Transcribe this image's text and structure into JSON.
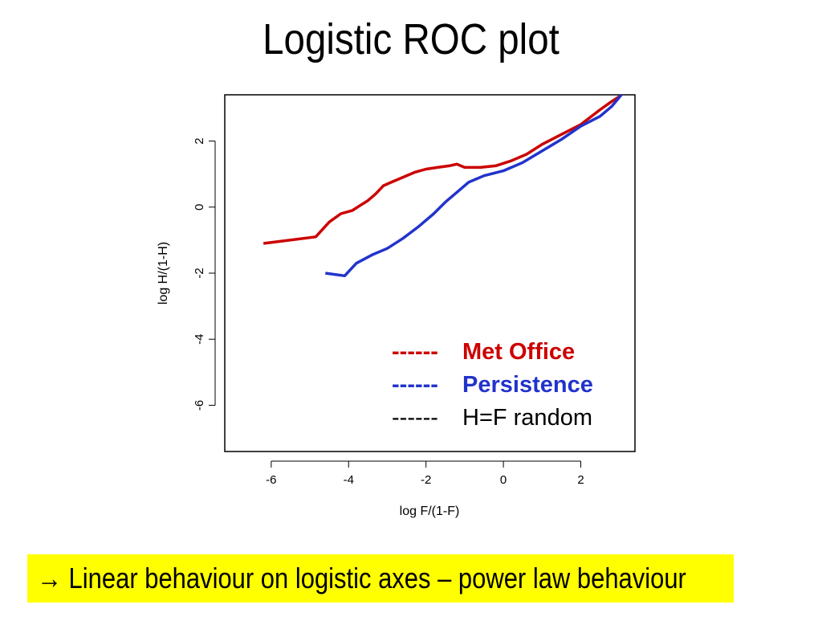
{
  "slide": {
    "title": "Logistic ROC plot",
    "caption": "→ Linear behaviour on logistic axes – power law behaviour",
    "caption_background": "#ffff00"
  },
  "chart_data": {
    "type": "line",
    "xlabel": "log F/(1-F)",
    "ylabel": "log H/(1-H)",
    "xlim": [
      -7.2,
      3.4
    ],
    "ylim": [
      -7.4,
      3.4
    ],
    "xticks": [
      -6,
      -4,
      -2,
      0,
      2
    ],
    "yticks": [
      -6,
      -4,
      -2,
      0,
      2
    ],
    "grid": false,
    "legend_position": "bottom-right",
    "legend": [
      {
        "dashes": "------",
        "label": "Met Office",
        "color": "#cc0000",
        "bold": true
      },
      {
        "dashes": "------",
        "label": "Persistence",
        "color": "#2233cc",
        "bold": true
      },
      {
        "dashes": "------",
        "label": "H=F random",
        "color": "#000000",
        "bold": false
      }
    ],
    "series": [
      {
        "name": "Met Office",
        "color": "#cc0000",
        "x": [
          -6.2,
          -4.85,
          -4.5,
          -4.2,
          -3.9,
          -3.7,
          -3.5,
          -3.3,
          -3.1,
          -2.9,
          -2.6,
          -2.3,
          -2.0,
          -1.7,
          -1.4,
          -1.2,
          -1.0,
          -0.6,
          -0.2,
          0.2,
          0.6,
          1.0,
          1.5,
          2.0,
          2.5,
          2.8,
          3.0
        ],
        "y": [
          -1.1,
          -0.9,
          -0.45,
          -0.2,
          -0.1,
          0.05,
          0.2,
          0.4,
          0.65,
          0.75,
          0.9,
          1.05,
          1.15,
          1.2,
          1.25,
          1.3,
          1.2,
          1.2,
          1.25,
          1.4,
          1.6,
          1.9,
          2.2,
          2.5,
          2.95,
          3.2,
          3.35
        ]
      },
      {
        "name": "Persistence",
        "color": "#2233cc",
        "x": [
          -4.6,
          -4.1,
          -3.8,
          -3.4,
          -3.0,
          -2.6,
          -2.2,
          -1.8,
          -1.5,
          -1.2,
          -0.9,
          -0.5,
          0.0,
          0.5,
          1.0,
          1.5,
          2.0,
          2.5,
          2.8,
          3.05
        ],
        "y": [
          -2.0,
          -2.08,
          -1.7,
          -1.45,
          -1.25,
          -0.95,
          -0.6,
          -0.2,
          0.15,
          0.45,
          0.75,
          0.95,
          1.1,
          1.35,
          1.7,
          2.05,
          2.45,
          2.75,
          3.05,
          3.4
        ]
      }
    ]
  }
}
